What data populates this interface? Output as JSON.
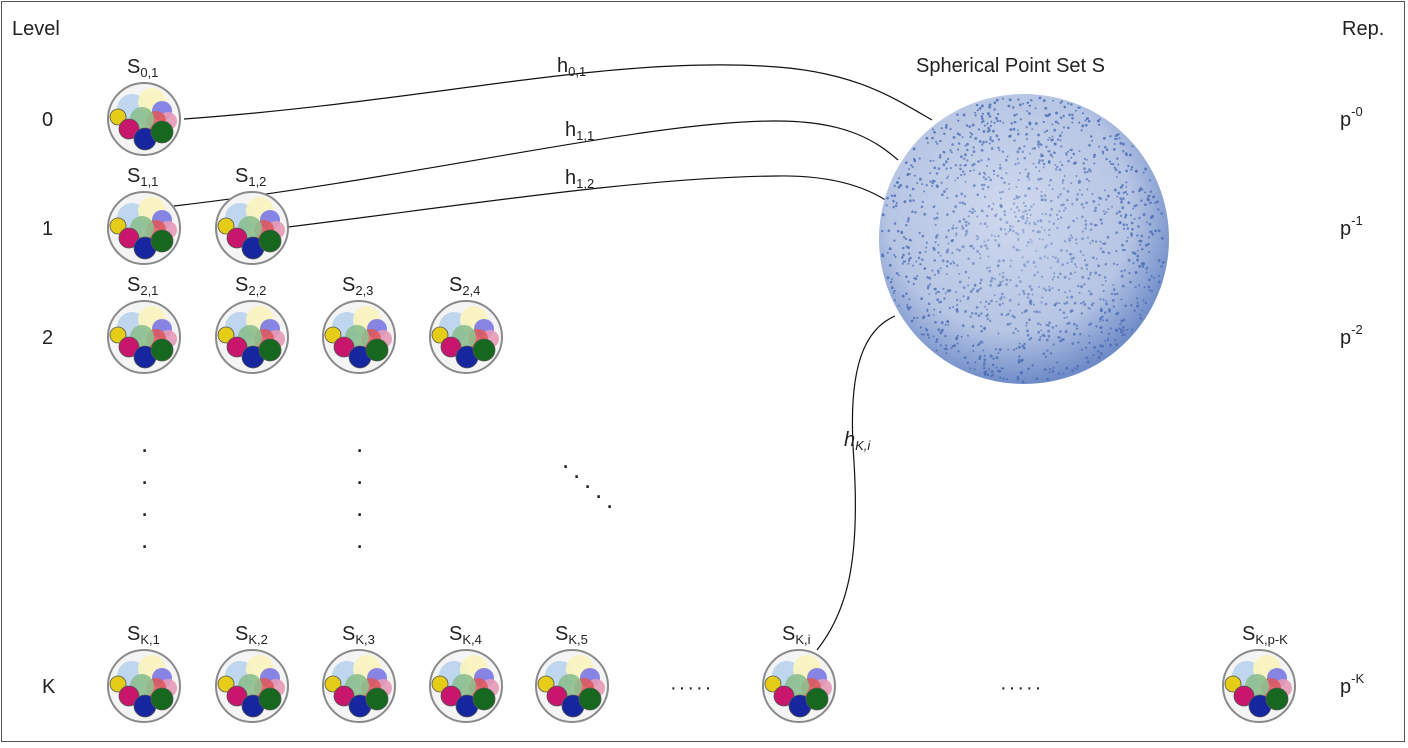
{
  "headers": {
    "level": "Level",
    "rep": "Rep."
  },
  "sphere_title": "Spherical Point Set S",
  "levels": [
    {
      "label": "0",
      "rep": {
        "base": "p",
        "exp": "-0"
      },
      "nodes": [
        {
          "base": "S",
          "sub": "0,1"
        }
      ]
    },
    {
      "label": "1",
      "rep": {
        "base": "p",
        "exp": "-1"
      },
      "nodes": [
        {
          "base": "S",
          "sub": "1,1"
        },
        {
          "base": "S",
          "sub": "1,2"
        }
      ]
    },
    {
      "label": "2",
      "rep": {
        "base": "p",
        "exp": "-2"
      },
      "nodes": [
        {
          "base": "S",
          "sub": "2,1"
        },
        {
          "base": "S",
          "sub": "2,2"
        },
        {
          "base": "S",
          "sub": "2,3"
        },
        {
          "base": "S",
          "sub": "2,4"
        }
      ]
    },
    {
      "label": "K",
      "rep": {
        "base": "p",
        "exp": "-K"
      },
      "nodes": [
        {
          "base": "S",
          "sub": "K,1"
        },
        {
          "base": "S",
          "sub": "K,2"
        },
        {
          "base": "S",
          "sub": "K,3"
        },
        {
          "base": "S",
          "sub": "K,4"
        },
        {
          "base": "S",
          "sub": "K,5"
        },
        {
          "base": "S",
          "sub": "K,i"
        },
        {
          "base": "S",
          "sub": "K,p-K"
        }
      ]
    }
  ],
  "edges": [
    {
      "base": "h",
      "sub": "0,1"
    },
    {
      "base": "h",
      "sub": "1,1"
    },
    {
      "base": "h",
      "sub": "1,2"
    },
    {
      "base": "h",
      "sub": "K,i"
    }
  ],
  "ellipsis": "·····",
  "colors": {
    "sphere": "#4a6cb5",
    "circle_border": "#8a8a8a",
    "edge": "#111111",
    "subset_fills": [
      "#bcd4ee",
      "#faf3bf",
      "#7b78e6",
      "#e79ab6",
      "#e4cc17",
      "#c8166c",
      "#16269e",
      "#15681e",
      "#8cbf8e",
      "#e05656"
    ]
  }
}
